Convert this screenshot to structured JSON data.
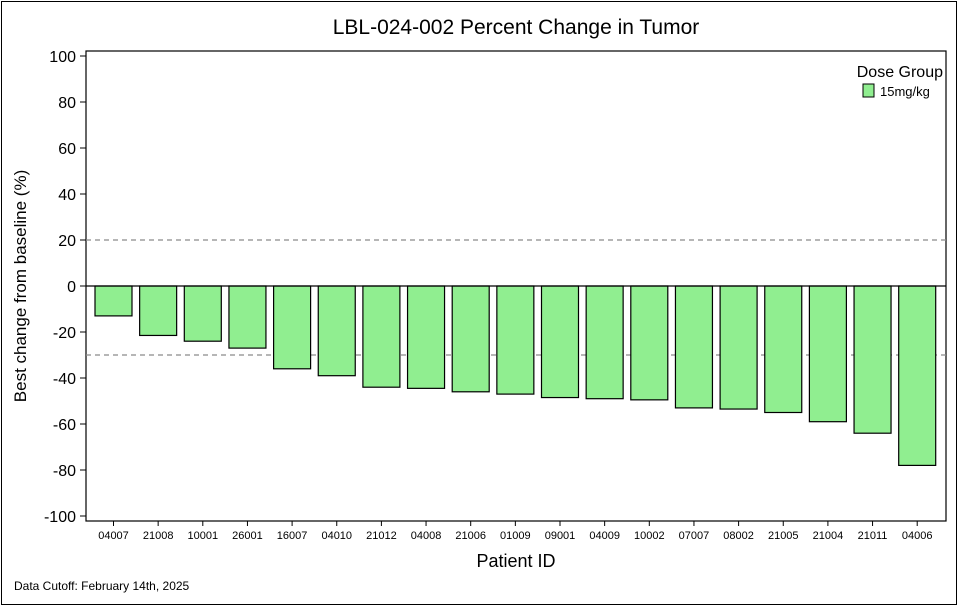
{
  "chart_data": {
    "type": "bar",
    "title": "LBL-024-002 Percent Change in Tumor",
    "xlabel": "Patient ID",
    "ylabel": "Best change from baseline (%)",
    "ylim": [
      -100,
      100
    ],
    "yticks": [
      100,
      80,
      60,
      40,
      20,
      0,
      -20,
      -40,
      -60,
      -80,
      -100
    ],
    "reference_lines": [
      20,
      -30
    ],
    "categories": [
      "04007",
      "21008",
      "10001",
      "26001",
      "16007",
      "04010",
      "21012",
      "04008",
      "21006",
      "01009",
      "09001",
      "04009",
      "10002",
      "07007",
      "08002",
      "21005",
      "21004",
      "21011",
      "04006"
    ],
    "series": [
      {
        "name": "15mg/kg",
        "values": [
          -13,
          -21.5,
          -24,
          -27,
          -36,
          -39,
          -44,
          -44.5,
          -46,
          -47,
          -48.5,
          -49,
          -49.5,
          -53,
          -53.5,
          -55,
          -59,
          -64,
          -78
        ],
        "color": "#90ee90"
      }
    ],
    "legend": {
      "title": "Dose Group",
      "position": "top-right"
    },
    "grid": false
  },
  "footnote": "Data Cutoff: February 14th, 2025"
}
